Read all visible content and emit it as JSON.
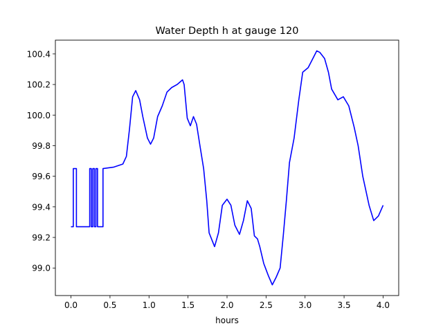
{
  "chart_data": {
    "type": "line",
    "title": "Water Depth h at gauge 120",
    "xlabel": "hours",
    "ylabel": "",
    "xlim": [
      -0.2,
      4.2
    ],
    "ylim": [
      98.82,
      100.49
    ],
    "xticks": [
      0.0,
      0.5,
      1.0,
      1.5,
      2.0,
      2.5,
      3.0,
      3.5,
      4.0
    ],
    "xtick_labels": [
      "0.0",
      "0.5",
      "1.0",
      "1.5",
      "2.0",
      "2.5",
      "3.0",
      "3.5",
      "4.0"
    ],
    "yticks": [
      99.0,
      99.2,
      99.4,
      99.6,
      99.8,
      100.0,
      100.2,
      100.4
    ],
    "ytick_labels": [
      "99.0",
      "99.2",
      "99.4",
      "99.6",
      "99.8",
      "100.0",
      "100.2",
      "100.4"
    ],
    "grid": false,
    "series": [
      {
        "name": "h",
        "color": "#0000ff",
        "x": [
          0.0,
          0.03,
          0.03,
          0.07,
          0.07,
          0.24,
          0.24,
          0.26,
          0.26,
          0.28,
          0.28,
          0.3,
          0.3,
          0.32,
          0.32,
          0.34,
          0.34,
          0.41,
          0.41,
          0.55,
          0.665,
          0.71,
          0.75,
          0.79,
          0.83,
          0.88,
          0.92,
          0.98,
          1.02,
          1.06,
          1.11,
          1.17,
          1.23,
          1.29,
          1.36,
          1.43,
          1.45,
          1.49,
          1.53,
          1.57,
          1.61,
          1.65,
          1.7,
          1.74,
          1.77,
          1.84,
          1.89,
          1.94,
          2.0,
          2.05,
          2.1,
          2.16,
          2.21,
          2.26,
          2.31,
          2.35,
          2.39,
          2.42,
          2.47,
          2.53,
          2.58,
          2.63,
          2.68,
          2.72,
          2.76,
          2.8,
          2.86,
          2.92,
          2.97,
          3.04,
          3.1,
          3.15,
          3.19,
          3.25,
          3.3,
          3.34,
          3.42,
          3.49,
          3.56,
          3.63,
          3.68,
          3.74,
          3.82,
          3.88,
          3.94,
          4.0
        ],
        "y": [
          99.27,
          99.27,
          99.65,
          99.65,
          99.27,
          99.27,
          99.65,
          99.65,
          99.27,
          99.27,
          99.65,
          99.65,
          99.27,
          99.27,
          99.65,
          99.65,
          99.27,
          99.27,
          99.65,
          99.66,
          99.68,
          99.73,
          99.91,
          100.12,
          100.16,
          100.1,
          99.99,
          99.85,
          99.81,
          99.85,
          99.99,
          100.06,
          100.15,
          100.18,
          100.2,
          100.23,
          100.2,
          99.98,
          99.93,
          99.99,
          99.94,
          99.81,
          99.65,
          99.44,
          99.23,
          99.14,
          99.23,
          99.41,
          99.45,
          99.41,
          99.28,
          99.22,
          99.31,
          99.44,
          99.39,
          99.21,
          99.19,
          99.14,
          99.03,
          98.95,
          98.89,
          98.94,
          99.0,
          99.21,
          99.44,
          99.69,
          99.85,
          100.1,
          100.28,
          100.31,
          100.37,
          100.42,
          100.41,
          100.37,
          100.28,
          100.17,
          100.1,
          100.12,
          100.06,
          99.92,
          99.8,
          99.6,
          99.41,
          99.31,
          99.34,
          99.41
        ]
      }
    ]
  }
}
